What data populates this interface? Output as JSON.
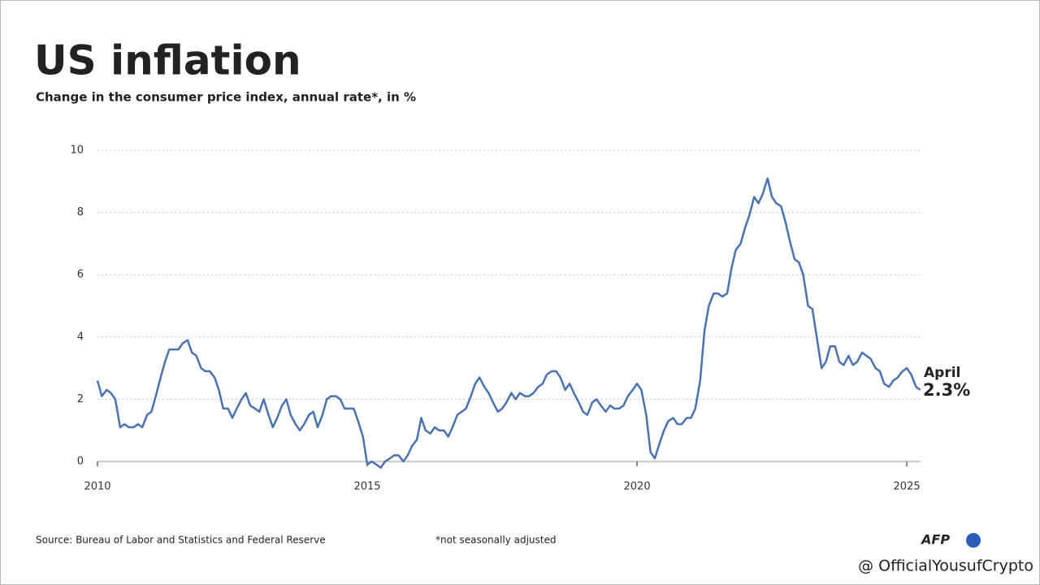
{
  "chart_data": {
    "type": "line",
    "title": "US inflation",
    "subtitle": "Change in the consumer price index, annual rate*, in %",
    "source": "Source: Bureau of Labor and Statistics and Federal Reserve",
    "footnote": "*not seasonally adjusted",
    "logo": "AFP",
    "watermark": "@ OfficialYousufCrypto",
    "annotation": {
      "text": "April",
      "value_label": "2.3%"
    },
    "xlim": [
      2010,
      2025.3
    ],
    "xticks": [
      2010,
      2015,
      2020,
      2025
    ],
    "ylim": [
      0,
      10
    ],
    "yticks": [
      0,
      2,
      4,
      6,
      8,
      10
    ],
    "grid": true,
    "x": [
      2010,
      2010.08,
      2010.17,
      2010.25,
      2010.33,
      2010.42,
      2010.5,
      2010.58,
      2010.67,
      2010.75,
      2010.83,
      2010.92,
      2011,
      2011.08,
      2011.17,
      2011.25,
      2011.33,
      2011.42,
      2011.5,
      2011.58,
      2011.67,
      2011.75,
      2011.83,
      2011.92,
      2012,
      2012.08,
      2012.17,
      2012.25,
      2012.33,
      2012.42,
      2012.5,
      2012.58,
      2012.67,
      2012.75,
      2012.83,
      2012.92,
      2013,
      2013.08,
      2013.17,
      2013.25,
      2013.33,
      2013.42,
      2013.5,
      2013.58,
      2013.67,
      2013.75,
      2013.83,
      2013.92,
      2014,
      2014.08,
      2014.17,
      2014.25,
      2014.33,
      2014.42,
      2014.5,
      2014.58,
      2014.67,
      2014.75,
      2014.83,
      2014.92,
      2015,
      2015.08,
      2015.17,
      2015.25,
      2015.33,
      2015.42,
      2015.5,
      2015.58,
      2015.67,
      2015.75,
      2015.83,
      2015.92,
      2016,
      2016.08,
      2016.17,
      2016.25,
      2016.33,
      2016.42,
      2016.5,
      2016.58,
      2016.67,
      2016.75,
      2016.83,
      2016.92,
      2017,
      2017.08,
      2017.17,
      2017.25,
      2017.33,
      2017.42,
      2017.5,
      2017.58,
      2017.67,
      2017.75,
      2017.83,
      2017.92,
      2018,
      2018.08,
      2018.17,
      2018.25,
      2018.33,
      2018.42,
      2018.5,
      2018.58,
      2018.67,
      2018.75,
      2018.83,
      2018.92,
      2019,
      2019.08,
      2019.17,
      2019.25,
      2019.33,
      2019.42,
      2019.5,
      2019.58,
      2019.67,
      2019.75,
      2019.83,
      2019.92,
      2020,
      2020.08,
      2020.17,
      2020.25,
      2020.33,
      2020.42,
      2020.5,
      2020.58,
      2020.67,
      2020.75,
      2020.83,
      2020.92,
      2021,
      2021.08,
      2021.17,
      2021.25,
      2021.33,
      2021.42,
      2021.5,
      2021.58,
      2021.67,
      2021.75,
      2021.83,
      2021.92,
      2022,
      2022.08,
      2022.17,
      2022.25,
      2022.33,
      2022.42,
      2022.5,
      2022.58,
      2022.67,
      2022.75,
      2022.83,
      2022.92,
      2023,
      2023.08,
      2023.17,
      2023.25,
      2023.33,
      2023.42,
      2023.5,
      2023.58,
      2023.67,
      2023.75,
      2023.83,
      2023.92,
      2024,
      2024.08,
      2024.17,
      2024.25,
      2024.33,
      2024.42,
      2024.5,
      2024.58,
      2024.67,
      2024.75,
      2024.83,
      2024.92,
      2025,
      2025.08,
      2025.17,
      2025.25
    ],
    "series": [
      {
        "color": "#4a72b0",
        "values": [
          2.6,
          2.1,
          2.3,
          2.2,
          2.0,
          1.1,
          1.2,
          1.1,
          1.1,
          1.2,
          1.1,
          1.5,
          1.6,
          2.1,
          2.7,
          3.2,
          3.6,
          3.6,
          3.6,
          3.8,
          3.9,
          3.5,
          3.4,
          3.0,
          2.9,
          2.9,
          2.7,
          2.3,
          1.7,
          1.7,
          1.4,
          1.7,
          2.0,
          2.2,
          1.8,
          1.7,
          1.6,
          2.0,
          1.5,
          1.1,
          1.4,
          1.8,
          2.0,
          1.5,
          1.2,
          1.0,
          1.2,
          1.5,
          1.6,
          1.1,
          1.5,
          2.0,
          2.1,
          2.1,
          2.0,
          1.7,
          1.7,
          1.7,
          1.3,
          0.8,
          -0.1,
          0.0,
          -0.1,
          -0.2,
          0.0,
          0.1,
          0.2,
          0.2,
          0.0,
          0.2,
          0.5,
          0.7,
          1.4,
          1.0,
          0.9,
          1.1,
          1.0,
          1.0,
          0.8,
          1.1,
          1.5,
          1.6,
          1.7,
          2.1,
          2.5,
          2.7,
          2.4,
          2.2,
          1.9,
          1.6,
          1.7,
          1.9,
          2.2,
          2.0,
          2.2,
          2.1,
          2.1,
          2.2,
          2.4,
          2.5,
          2.8,
          2.9,
          2.9,
          2.7,
          2.3,
          2.5,
          2.2,
          1.9,
          1.6,
          1.5,
          1.9,
          2.0,
          1.8,
          1.6,
          1.8,
          1.7,
          1.7,
          1.8,
          2.1,
          2.3,
          2.5,
          2.3,
          1.5,
          0.3,
          0.1,
          0.6,
          1.0,
          1.3,
          1.4,
          1.2,
          1.2,
          1.4,
          1.4,
          1.7,
          2.6,
          4.2,
          5.0,
          5.4,
          5.4,
          5.3,
          5.4,
          6.2,
          6.8,
          7.0,
          7.5,
          7.9,
          8.5,
          8.3,
          8.6,
          9.1,
          8.5,
          8.3,
          8.2,
          7.7,
          7.1,
          6.5,
          6.4,
          6.0,
          5.0,
          4.9,
          4.0,
          3.0,
          3.2,
          3.7,
          3.7,
          3.2,
          3.1,
          3.4,
          3.1,
          3.2,
          3.5,
          3.4,
          3.3,
          3.0,
          2.9,
          2.5,
          2.4,
          2.6,
          2.7,
          2.9,
          3.0,
          2.8,
          2.4,
          2.3
        ]
      }
    ]
  }
}
